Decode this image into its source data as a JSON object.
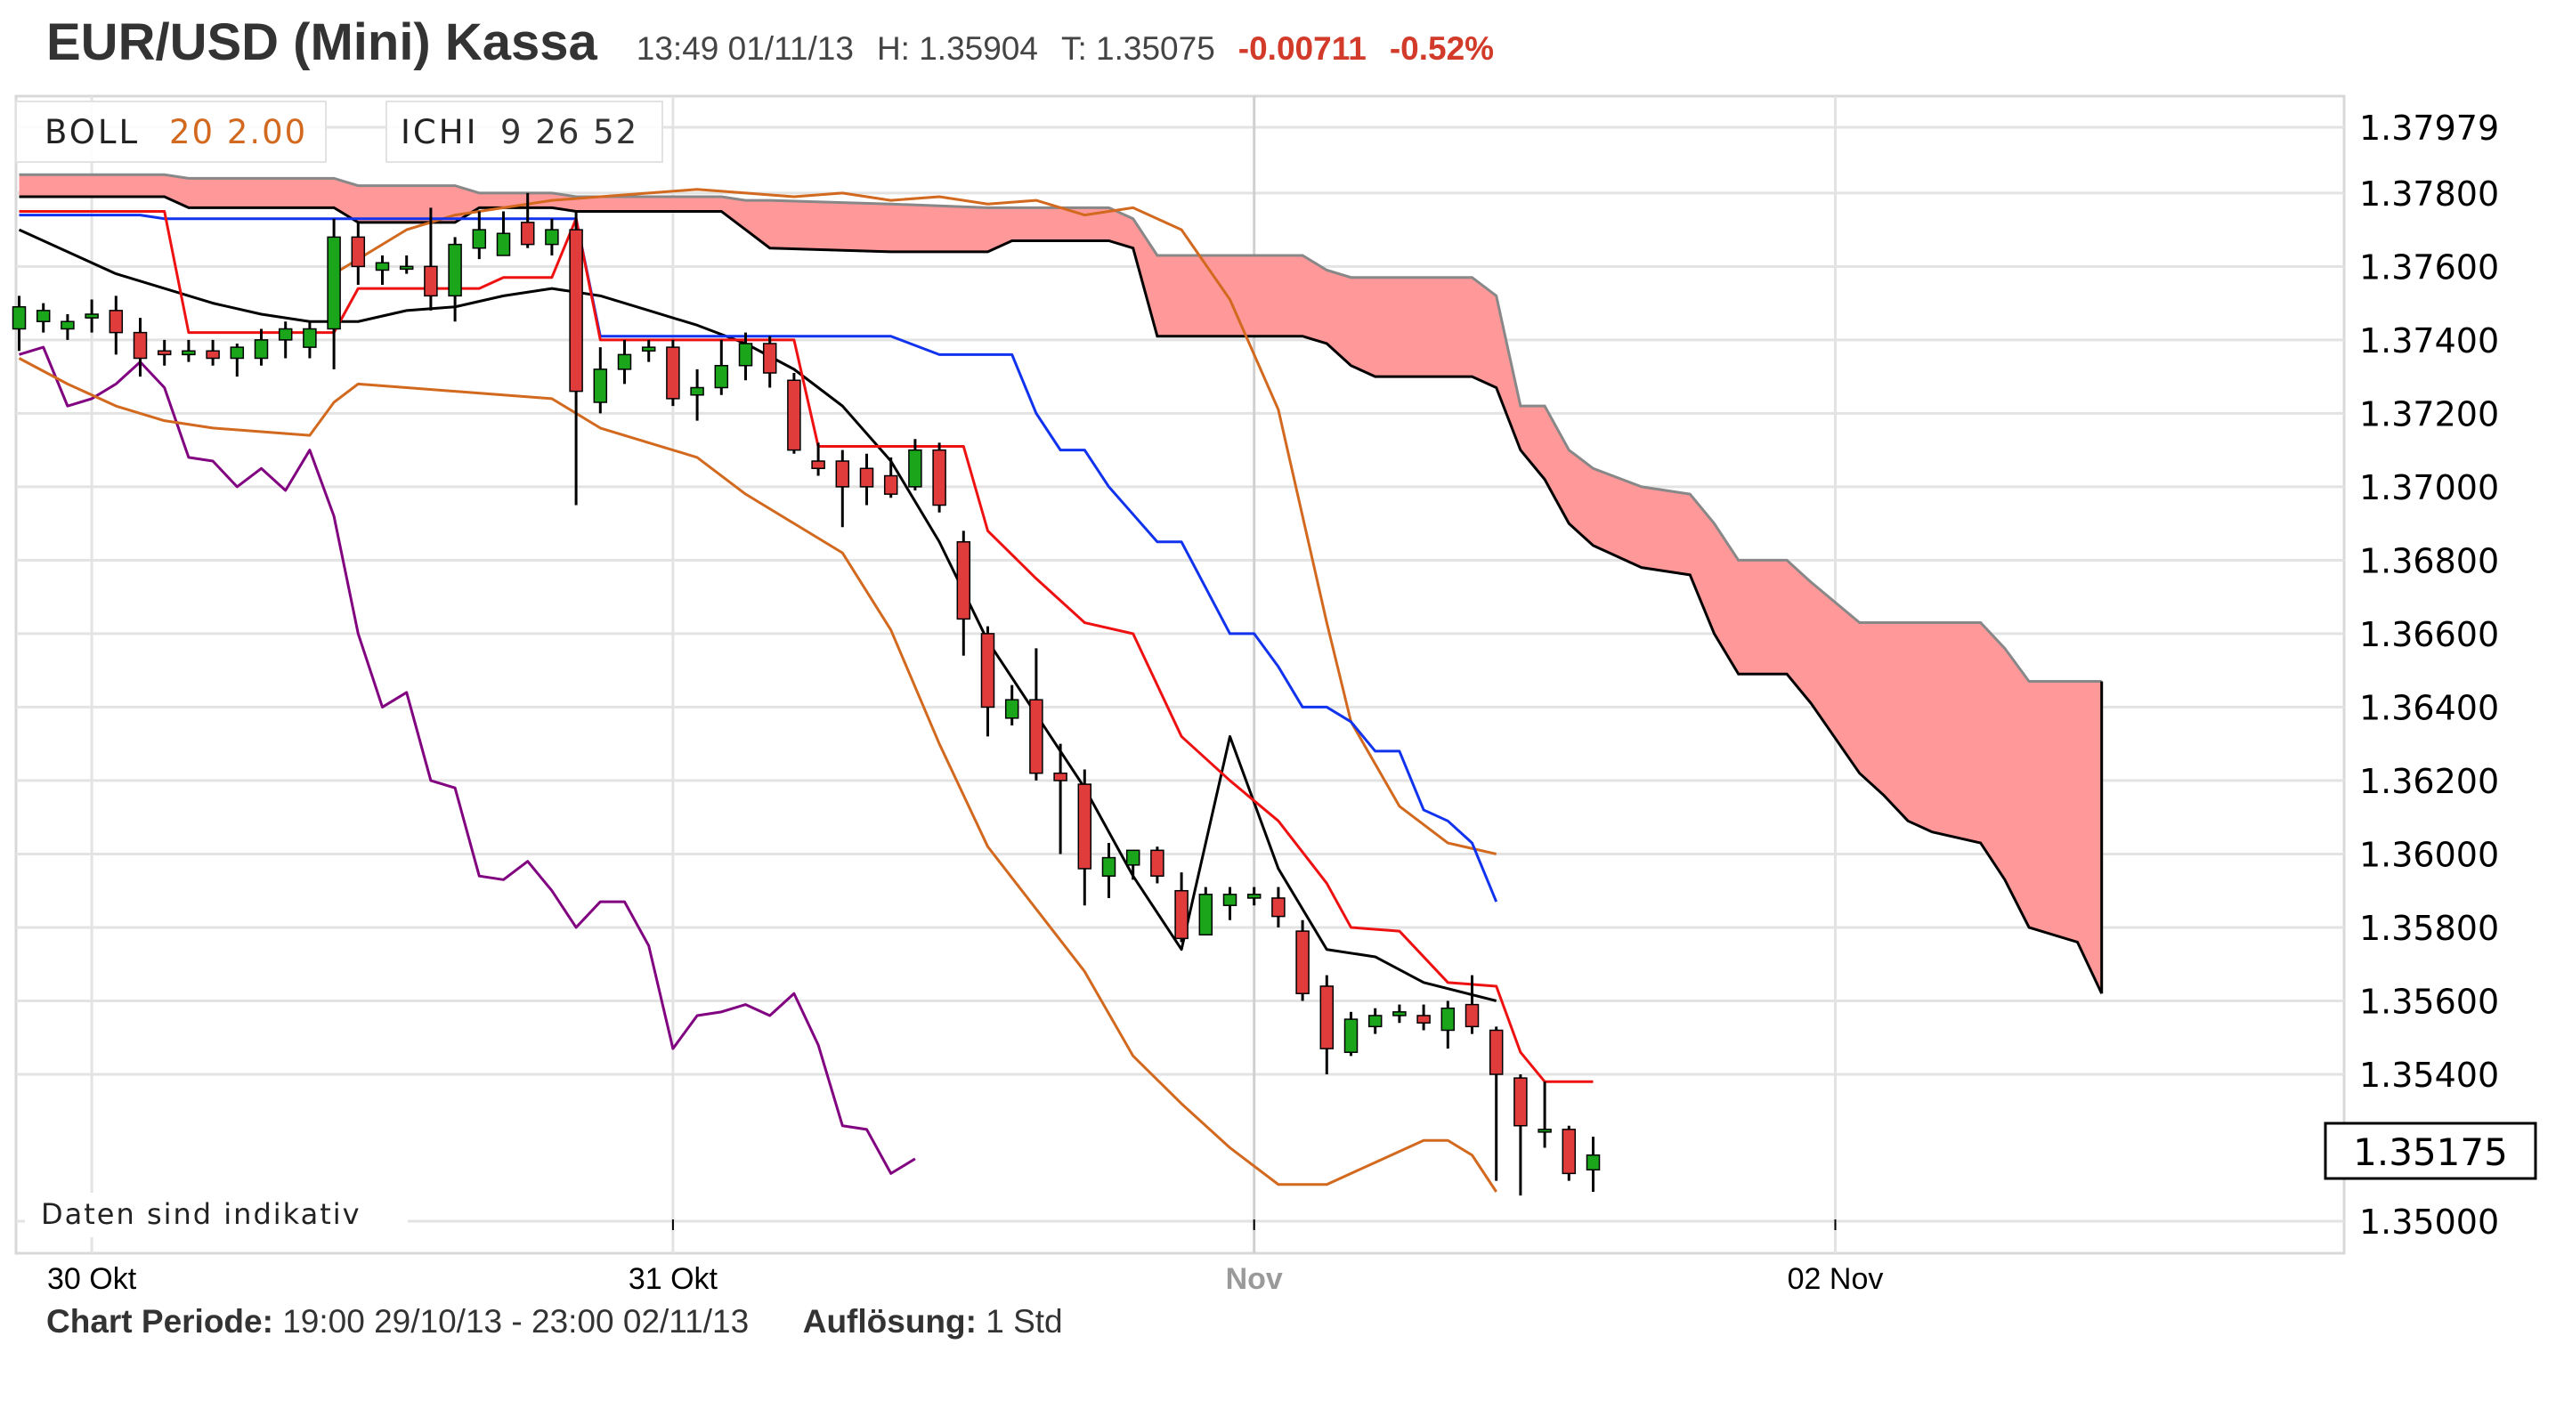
{
  "header": {
    "title": "EUR/USD (Mini) Kassa",
    "time": "13:49 01/11/13",
    "high": "H: 1.35904",
    "low": "T: 1.35075",
    "change": "-0.00711",
    "change_pct": "-0.52%"
  },
  "legend": {
    "boll": {
      "name": "BOLL",
      "params": "20 2.00"
    },
    "ichi": {
      "name": "ICHI",
      "params": "9 26 52"
    }
  },
  "note": "Daten sind indikativ",
  "footer": {
    "period_label": "Chart Periode:",
    "period_value": "19:00 29/10/13 - 23:00 02/11/13",
    "res_label": "Auflösung:",
    "res_value": "1 Std"
  },
  "colors": {
    "up": "#1aa51a",
    "down": "#e03c3c",
    "tenkan": "#ee1111",
    "kijun": "#1133ee",
    "chikou": "#800080",
    "boll": "#d2691e",
    "middle": "#000000",
    "cloud": "#ff9999",
    "grid": "#e3e3e3"
  },
  "chart_data": {
    "type": "candlestick",
    "ylim": [
      1.3497,
      1.3805
    ],
    "y_ticks": [
      "1.37979",
      "1.37800",
      "1.37600",
      "1.37400",
      "1.37200",
      "1.37000",
      "1.36800",
      "1.36600",
      "1.36400",
      "1.36200",
      "1.36000",
      "1.35800",
      "1.35600",
      "1.35400",
      "1.35000"
    ],
    "x_ticks": [
      {
        "label": "30 Okt",
        "bar": 3
      },
      {
        "label": "31 Okt",
        "bar": 27
      },
      {
        "label": "Nov",
        "bar": 51,
        "muted": true
      },
      {
        "label": "02 Nov",
        "bar": 75
      }
    ],
    "last_price": "1.35175",
    "candles": [
      {
        "o": 1.3743,
        "h": 1.3752,
        "l": 1.3737,
        "c": 1.3749
      },
      {
        "o": 1.3745,
        "h": 1.375,
        "l": 1.3742,
        "c": 1.3748
      },
      {
        "o": 1.3743,
        "h": 1.3747,
        "l": 1.374,
        "c": 1.3745
      },
      {
        "o": 1.3746,
        "h": 1.3751,
        "l": 1.3742,
        "c": 1.3747
      },
      {
        "o": 1.3748,
        "h": 1.3752,
        "l": 1.3736,
        "c": 1.3742
      },
      {
        "o": 1.3742,
        "h": 1.3746,
        "l": 1.373,
        "c": 1.3735
      },
      {
        "o": 1.3737,
        "h": 1.374,
        "l": 1.3733,
        "c": 1.3736
      },
      {
        "o": 1.3736,
        "h": 1.374,
        "l": 1.3734,
        "c": 1.3737
      },
      {
        "o": 1.3737,
        "h": 1.374,
        "l": 1.3733,
        "c": 1.3735
      },
      {
        "o": 1.3735,
        "h": 1.3739,
        "l": 1.373,
        "c": 1.3738
      },
      {
        "o": 1.3735,
        "h": 1.3743,
        "l": 1.3733,
        "c": 1.374
      },
      {
        "o": 1.374,
        "h": 1.3745,
        "l": 1.3735,
        "c": 1.3743
      },
      {
        "o": 1.3738,
        "h": 1.3745,
        "l": 1.3735,
        "c": 1.3743
      },
      {
        "o": 1.3743,
        "h": 1.3773,
        "l": 1.3732,
        "c": 1.3768
      },
      {
        "o": 1.3768,
        "h": 1.3772,
        "l": 1.3755,
        "c": 1.376
      },
      {
        "o": 1.3759,
        "h": 1.3763,
        "l": 1.3755,
        "c": 1.3761
      },
      {
        "o": 1.376,
        "h": 1.3763,
        "l": 1.3758,
        "c": 1.376
      },
      {
        "o": 1.376,
        "h": 1.3776,
        "l": 1.3748,
        "c": 1.3752
      },
      {
        "o": 1.3752,
        "h": 1.3768,
        "l": 1.3745,
        "c": 1.3766
      },
      {
        "o": 1.3765,
        "h": 1.3775,
        "l": 1.3762,
        "c": 1.377
      },
      {
        "o": 1.3763,
        "h": 1.3775,
        "l": 1.3763,
        "c": 1.3769
      },
      {
        "o": 1.3772,
        "h": 1.378,
        "l": 1.3765,
        "c": 1.3766
      },
      {
        "o": 1.3766,
        "h": 1.3773,
        "l": 1.3763,
        "c": 1.377
      },
      {
        "o": 1.377,
        "h": 1.3775,
        "l": 1.3695,
        "c": 1.3726
      },
      {
        "o": 1.3723,
        "h": 1.3738,
        "l": 1.372,
        "c": 1.3732
      },
      {
        "o": 1.3732,
        "h": 1.374,
        "l": 1.3728,
        "c": 1.3736
      },
      {
        "o": 1.3737,
        "h": 1.374,
        "l": 1.3734,
        "c": 1.3738
      },
      {
        "o": 1.3738,
        "h": 1.374,
        "l": 1.3722,
        "c": 1.3724
      },
      {
        "o": 1.3725,
        "h": 1.3732,
        "l": 1.3718,
        "c": 1.3727
      },
      {
        "o": 1.3727,
        "h": 1.374,
        "l": 1.3725,
        "c": 1.3733
      },
      {
        "o": 1.3733,
        "h": 1.3742,
        "l": 1.3729,
        "c": 1.3739
      },
      {
        "o": 1.3739,
        "h": 1.3741,
        "l": 1.3727,
        "c": 1.3731
      },
      {
        "o": 1.3729,
        "h": 1.3731,
        "l": 1.3709,
        "c": 1.371
      },
      {
        "o": 1.3707,
        "h": 1.3712,
        "l": 1.3703,
        "c": 1.3705
      },
      {
        "o": 1.3707,
        "h": 1.371,
        "l": 1.3689,
        "c": 1.37
      },
      {
        "o": 1.3705,
        "h": 1.3709,
        "l": 1.3695,
        "c": 1.37
      },
      {
        "o": 1.3703,
        "h": 1.3708,
        "l": 1.3697,
        "c": 1.3698
      },
      {
        "o": 1.37,
        "h": 1.3713,
        "l": 1.3699,
        "c": 1.371
      },
      {
        "o": 1.371,
        "h": 1.3712,
        "l": 1.3693,
        "c": 1.3695
      },
      {
        "o": 1.3685,
        "h": 1.3688,
        "l": 1.3654,
        "c": 1.3664
      },
      {
        "o": 1.366,
        "h": 1.3662,
        "l": 1.3632,
        "c": 1.364
      },
      {
        "o": 1.3637,
        "h": 1.3646,
        "l": 1.3635,
        "c": 1.3642
      },
      {
        "o": 1.3642,
        "h": 1.3656,
        "l": 1.362,
        "c": 1.3622
      },
      {
        "o": 1.3622,
        "h": 1.363,
        "l": 1.36,
        "c": 1.362
      },
      {
        "o": 1.3619,
        "h": 1.3623,
        "l": 1.3586,
        "c": 1.3596
      },
      {
        "o": 1.3594,
        "h": 1.3603,
        "l": 1.3588,
        "c": 1.3599
      },
      {
        "o": 1.3597,
        "h": 1.3601,
        "l": 1.3593,
        "c": 1.3601
      },
      {
        "o": 1.3601,
        "h": 1.3602,
        "l": 1.3592,
        "c": 1.3594
      },
      {
        "o": 1.359,
        "h": 1.3595,
        "l": 1.3576,
        "c": 1.3577
      },
      {
        "o": 1.3578,
        "h": 1.3591,
        "l": 1.3578,
        "c": 1.3589
      },
      {
        "o": 1.3586,
        "h": 1.3591,
        "l": 1.3582,
        "c": 1.3589
      },
      {
        "o": 1.3588,
        "h": 1.3591,
        "l": 1.3586,
        "c": 1.3589
      },
      {
        "o": 1.3588,
        "h": 1.3591,
        "l": 1.358,
        "c": 1.3583
      },
      {
        "o": 1.3579,
        "h": 1.3582,
        "l": 1.356,
        "c": 1.3562
      },
      {
        "o": 1.3564,
        "h": 1.3567,
        "l": 1.354,
        "c": 1.3547
      },
      {
        "o": 1.3546,
        "h": 1.3557,
        "l": 1.3545,
        "c": 1.3555
      },
      {
        "o": 1.3553,
        "h": 1.3558,
        "l": 1.3551,
        "c": 1.3556
      },
      {
        "o": 1.3556,
        "h": 1.3559,
        "l": 1.3554,
        "c": 1.3557
      },
      {
        "o": 1.3556,
        "h": 1.3559,
        "l": 1.3552,
        "c": 1.3554
      },
      {
        "o": 1.3552,
        "h": 1.356,
        "l": 1.3547,
        "c": 1.3558
      },
      {
        "o": 1.3559,
        "h": 1.3567,
        "l": 1.3551,
        "c": 1.3553
      },
      {
        "o": 1.3552,
        "h": 1.3553,
        "l": 1.3511,
        "c": 1.354
      },
      {
        "o": 1.3539,
        "h": 1.354,
        "l": 1.3507,
        "c": 1.3526
      },
      {
        "o": 1.3525,
        "h": 1.3538,
        "l": 1.352,
        "c": 1.3525
      },
      {
        "o": 1.3525,
        "h": 1.3526,
        "l": 1.3511,
        "c": 1.3513
      },
      {
        "o": 1.3514,
        "h": 1.3523,
        "l": 1.3508,
        "c": 1.3518
      }
    ],
    "tenkan": [
      [
        0,
        1.3775
      ],
      [
        6,
        1.3775
      ],
      [
        7,
        1.3742
      ],
      [
        8,
        1.3742
      ],
      [
        13,
        1.3742
      ],
      [
        14,
        1.3754
      ],
      [
        19,
        1.3754
      ],
      [
        20,
        1.3757
      ],
      [
        22,
        1.3757
      ],
      [
        23,
        1.3773
      ],
      [
        24,
        1.374
      ],
      [
        32,
        1.374
      ],
      [
        33,
        1.3711
      ],
      [
        39,
        1.3711
      ],
      [
        40,
        1.3688
      ],
      [
        42,
        1.3675
      ],
      [
        44,
        1.3663
      ],
      [
        46,
        1.366
      ],
      [
        48,
        1.3632
      ],
      [
        50,
        1.362
      ],
      [
        52,
        1.3609
      ],
      [
        54,
        1.3592
      ],
      [
        55,
        1.358
      ],
      [
        57,
        1.3579
      ],
      [
        59,
        1.3565
      ],
      [
        61,
        1.3564
      ],
      [
        62,
        1.3546
      ],
      [
        63,
        1.3538
      ],
      [
        65,
        1.3538
      ]
    ],
    "kijun": [
      [
        0,
        1.3774
      ],
      [
        5,
        1.3774
      ],
      [
        6,
        1.3773
      ],
      [
        23,
        1.3773
      ],
      [
        24,
        1.3741
      ],
      [
        36,
        1.3741
      ],
      [
        38,
        1.3736
      ],
      [
        41,
        1.3736
      ],
      [
        42,
        1.372
      ],
      [
        43,
        1.371
      ],
      [
        44,
        1.371
      ],
      [
        45,
        1.37
      ],
      [
        47,
        1.3685
      ],
      [
        48,
        1.3685
      ],
      [
        50,
        1.366
      ],
      [
        51,
        1.366
      ],
      [
        52,
        1.3651
      ],
      [
        53,
        1.364
      ],
      [
        54,
        1.364
      ],
      [
        55,
        1.3636
      ],
      [
        56,
        1.3628
      ],
      [
        57,
        1.3628
      ],
      [
        58,
        1.3612
      ],
      [
        59,
        1.3609
      ],
      [
        60,
        1.3603
      ],
      [
        61,
        1.3587
      ]
    ],
    "chikou": [
      [
        0,
        1.3736
      ],
      [
        1,
        1.3738
      ],
      [
        2,
        1.3722
      ],
      [
        3,
        1.3724
      ],
      [
        4,
        1.3728
      ],
      [
        5,
        1.3734
      ],
      [
        6,
        1.3727
      ],
      [
        7,
        1.3708
      ],
      [
        8,
        1.3707
      ],
      [
        9,
        1.37
      ],
      [
        10,
        1.3705
      ],
      [
        11,
        1.3699
      ],
      [
        12,
        1.371
      ],
      [
        13,
        1.3692
      ],
      [
        14,
        1.366
      ],
      [
        15,
        1.364
      ],
      [
        16,
        1.3644
      ],
      [
        17,
        1.362
      ],
      [
        18,
        1.3618
      ],
      [
        19,
        1.3594
      ],
      [
        20,
        1.3593
      ],
      [
        21,
        1.3598
      ],
      [
        22,
        1.359
      ],
      [
        23,
        1.358
      ],
      [
        24,
        1.3587
      ],
      [
        25,
        1.3587
      ],
      [
        26,
        1.3575
      ],
      [
        27,
        1.3547
      ],
      [
        28,
        1.3556
      ],
      [
        29,
        1.3557
      ],
      [
        30,
        1.3559
      ],
      [
        31,
        1.3556
      ],
      [
        32,
        1.3562
      ],
      [
        33,
        1.3548
      ],
      [
        34,
        1.3526
      ],
      [
        35,
        1.3525
      ],
      [
        36,
        1.3513
      ],
      [
        37,
        1.3517
      ]
    ],
    "boll_upper": [
      [
        13,
        1.3758
      ],
      [
        14,
        1.3762
      ],
      [
        16,
        1.377
      ],
      [
        18,
        1.3774
      ],
      [
        20,
        1.3776
      ],
      [
        22,
        1.3778
      ],
      [
        24,
        1.3779
      ],
      [
        26,
        1.378
      ],
      [
        28,
        1.3781
      ],
      [
        30,
        1.378
      ],
      [
        32,
        1.3779
      ],
      [
        34,
        1.378
      ],
      [
        36,
        1.3778
      ],
      [
        38,
        1.3779
      ],
      [
        40,
        1.3777
      ],
      [
        42,
        1.3778
      ],
      [
        44,
        1.3774
      ],
      [
        46,
        1.3776
      ],
      [
        48,
        1.377
      ],
      [
        50,
        1.3751
      ],
      [
        52,
        1.3721
      ],
      [
        54,
        1.3663
      ],
      [
        55,
        1.3636
      ],
      [
        57,
        1.3613
      ],
      [
        59,
        1.3603
      ],
      [
        61,
        1.36
      ]
    ],
    "boll_middle": [
      [
        0,
        1.377
      ],
      [
        2,
        1.3764
      ],
      [
        4,
        1.3758
      ],
      [
        6,
        1.3754
      ],
      [
        8,
        1.375
      ],
      [
        10,
        1.3747
      ],
      [
        12,
        1.3745
      ],
      [
        14,
        1.3745
      ],
      [
        16,
        1.3748
      ],
      [
        18,
        1.3749
      ],
      [
        20,
        1.3752
      ],
      [
        22,
        1.3754
      ],
      [
        24,
        1.3752
      ],
      [
        26,
        1.3748
      ],
      [
        28,
        1.3744
      ],
      [
        30,
        1.3739
      ],
      [
        32,
        1.3732
      ],
      [
        34,
        1.3722
      ],
      [
        36,
        1.3707
      ],
      [
        38,
        1.3685
      ],
      [
        40,
        1.3658
      ],
      [
        42,
        1.3638
      ],
      [
        44,
        1.3618
      ],
      [
        46,
        1.3594
      ],
      [
        48,
        1.3574
      ],
      [
        50,
        1.3632
      ],
      [
        52,
        1.3596
      ],
      [
        54,
        1.3574
      ],
      [
        56,
        1.3572
      ],
      [
        58,
        1.3565
      ],
      [
        61,
        1.356
      ]
    ],
    "boll_lower": [
      [
        0,
        1.3735
      ],
      [
        2,
        1.3728
      ],
      [
        4,
        1.3722
      ],
      [
        6,
        1.3718
      ],
      [
        8,
        1.3716
      ],
      [
        10,
        1.3715
      ],
      [
        12,
        1.3714
      ],
      [
        13,
        1.3723
      ],
      [
        14,
        1.3728
      ],
      [
        16,
        1.3727
      ],
      [
        18,
        1.3726
      ],
      [
        20,
        1.3725
      ],
      [
        22,
        1.3724
      ],
      [
        24,
        1.3716
      ],
      [
        26,
        1.3712
      ],
      [
        28,
        1.3708
      ],
      [
        30,
        1.3698
      ],
      [
        32,
        1.369
      ],
      [
        34,
        1.3682
      ],
      [
        36,
        1.3661
      ],
      [
        38,
        1.363
      ],
      [
        40,
        1.3602
      ],
      [
        42,
        1.3585
      ],
      [
        44,
        1.3568
      ],
      [
        46,
        1.3545
      ],
      [
        48,
        1.3532
      ],
      [
        50,
        1.352
      ],
      [
        52,
        1.351
      ],
      [
        54,
        1.351
      ],
      [
        56,
        1.3516
      ],
      [
        58,
        1.3522
      ],
      [
        59,
        1.3522
      ],
      [
        60,
        1.3518
      ],
      [
        61,
        1.3508
      ]
    ],
    "cloud": [
      [
        0,
        1.3785,
        1.3779
      ],
      [
        6,
        1.3785,
        1.3779
      ],
      [
        7,
        1.3784,
        1.3776
      ],
      [
        13,
        1.3784,
        1.3776
      ],
      [
        14,
        1.3782,
        1.3772
      ],
      [
        18,
        1.3782,
        1.3772
      ],
      [
        19,
        1.378,
        1.3776
      ],
      [
        22,
        1.378,
        1.3776
      ],
      [
        23,
        1.3779,
        1.3775
      ],
      [
        29,
        1.3779,
        1.3775
      ],
      [
        30,
        1.3778,
        1.377
      ],
      [
        31,
        1.3778,
        1.3765
      ],
      [
        36,
        1.3777,
        1.3764
      ],
      [
        40,
        1.3776,
        1.3764
      ],
      [
        41,
        1.3776,
        1.3767
      ],
      [
        45,
        1.3776,
        1.3767
      ],
      [
        46,
        1.3773,
        1.3765
      ],
      [
        47,
        1.3763,
        1.3741
      ],
      [
        53,
        1.3763,
        1.3741
      ],
      [
        54,
        1.3759,
        1.3739
      ],
      [
        55,
        1.3757,
        1.3733
      ],
      [
        56,
        1.3757,
        1.373
      ],
      [
        60,
        1.3757,
        1.373
      ],
      [
        61,
        1.3752,
        1.3727
      ],
      [
        62,
        1.3722,
        1.371
      ],
      [
        63,
        1.3722,
        1.3702
      ],
      [
        64,
        1.371,
        1.369
      ],
      [
        65,
        1.3705,
        1.3684
      ],
      [
        67,
        1.37,
        1.3678
      ],
      [
        69,
        1.3698,
        1.3676
      ],
      [
        70,
        1.369,
        1.366
      ],
      [
        71,
        1.368,
        1.3649
      ],
      [
        73,
        1.368,
        1.3649
      ],
      [
        74,
        1.3674,
        1.3641
      ],
      [
        76,
        1.3663,
        1.3622
      ],
      [
        77,
        1.3663,
        1.3616
      ],
      [
        78,
        1.3663,
        1.3609
      ],
      [
        79,
        1.3663,
        1.3606
      ],
      [
        81,
        1.3663,
        1.3603
      ],
      [
        82,
        1.3656,
        1.3593
      ],
      [
        83,
        1.3647,
        1.358
      ],
      [
        85,
        1.3647,
        1.3576
      ],
      [
        86,
        1.3647,
        1.3562
      ]
    ]
  }
}
